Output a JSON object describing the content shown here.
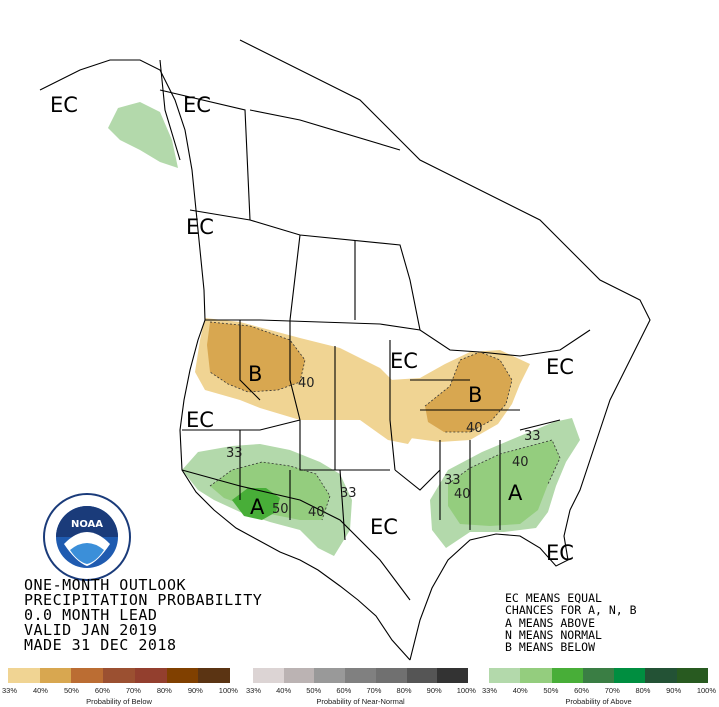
{
  "map": {
    "labels": {
      "ec_alaska": "EC",
      "ec_canada": "EC",
      "ec_pacific_nw_coast": "EC",
      "ec_west_coast": "EC",
      "ec_great_lakes": "EC",
      "ec_new_england": "EC",
      "ec_texas": "EC",
      "ec_florida": "EC",
      "b_northwest": "B",
      "b_ohio_valley": "B",
      "a_southwest": "A",
      "a_southeast": "A"
    },
    "contours": {
      "c40_northern_plains": "40",
      "c40_ohio_valley": "40",
      "c33_california": "33",
      "c50_southwest": "50",
      "c40_southwest": "40",
      "c33_southwest": "33",
      "c33_southeast_west": "33",
      "c40_southeast": "40",
      "c33_carolinas": "33",
      "c40_carolinas": "40"
    }
  },
  "title": {
    "line1": "ONE-MONTH OUTLOOK",
    "line2": "PRECIPITATION PROBABILITY",
    "line3": "0.0 MONTH LEAD",
    "line4": "VALID JAN 2019",
    "line5": "MADE 31 DEC 2018"
  },
  "key": {
    "line1": "EC MEANS EQUAL",
    "line2": "CHANCES FOR A, N, B",
    "line3": "A MEANS ABOVE",
    "line4": "N MEANS NORMAL",
    "line5": "B MEANS BELOW"
  },
  "scales": {
    "below": {
      "caption": "Probability of Below",
      "ticks": [
        "33%",
        "40%",
        "50%",
        "60%",
        "70%",
        "80%",
        "90%",
        "100%"
      ],
      "colors": [
        "#f0d493",
        "#d8a750",
        "#bb6d33",
        "#9b5031",
        "#933f2e",
        "#804000",
        "#5b3413"
      ]
    },
    "near_normal": {
      "caption": "Probability of Near-Normal",
      "ticks": [
        "33%",
        "40%",
        "50%",
        "60%",
        "70%",
        "80%",
        "90%",
        "100%"
      ],
      "colors": [
        "#dcd4d4",
        "#bbb3b3",
        "#999999",
        "#808080",
        "#707070",
        "#555555",
        "#333333"
      ]
    },
    "above": {
      "caption": "Probability of Above",
      "ticks": [
        "33%",
        "40%",
        "50%",
        "60%",
        "70%",
        "80%",
        "90%",
        "100%"
      ],
      "colors": [
        "#b3d9ab",
        "#94cd7e",
        "#48ae38",
        "#3a7e44",
        "#008e40",
        "#235235",
        "#285a20"
      ]
    }
  },
  "logo": {
    "text": "NOAA"
  }
}
